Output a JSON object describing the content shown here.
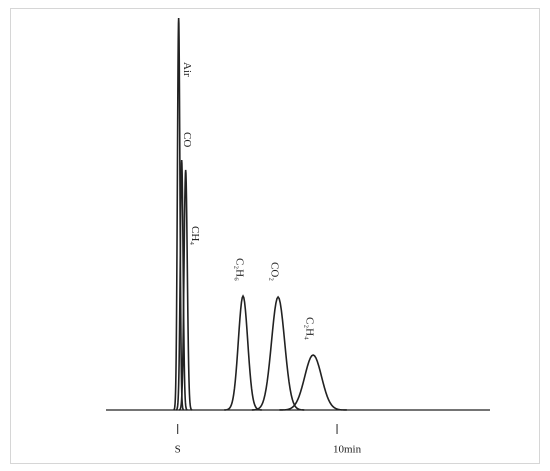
{
  "chart_data": {
    "type": "chromatogram",
    "peaks": {
      "labels": [
        "Air",
        "CO",
        "CH₄",
        "C₂H₆",
        "CO₂",
        "C₂H₄"
      ],
      "x": [
        0.06,
        0.25,
        0.5,
        4.1,
        6.3,
        8.5
      ],
      "values": [
        392,
        250,
        240,
        114,
        113,
        55
      ]
    },
    "xlim": [
      -4.5,
      19.6
    ],
    "ylim": [
      0,
      400
    ],
    "xticks": [
      {
        "value": 0,
        "label": "S"
      },
      {
        "value": 10,
        "label": "10min"
      }
    ],
    "color": "#222222"
  }
}
